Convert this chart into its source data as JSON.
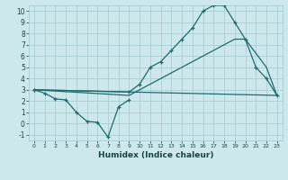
{
  "xlabel": "Humidex (Indice chaleur)",
  "bg_color": "#cce8ec",
  "grid_color": "#aacdd4",
  "line_color": "#1e6b6b",
  "xlim": [
    -0.5,
    23.5
  ],
  "ylim": [
    -1.5,
    10.5
  ],
  "xtick_labels": [
    "0",
    "1",
    "2",
    "3",
    "4",
    "5",
    "6",
    "7",
    "8",
    "9",
    "10",
    "11",
    "12",
    "13",
    "14",
    "15",
    "16",
    "17",
    "18",
    "19",
    "20",
    "21",
    "22",
    "23"
  ],
  "ytick_labels": [
    "-1",
    "0",
    "1",
    "2",
    "3",
    "4",
    "5",
    "6",
    "7",
    "8",
    "9",
    "10"
  ],
  "ytick_vals": [
    -1,
    0,
    1,
    2,
    3,
    4,
    5,
    6,
    7,
    8,
    9,
    10
  ],
  "xtick_vals": [
    0,
    1,
    2,
    3,
    4,
    5,
    6,
    7,
    8,
    9,
    10,
    11,
    12,
    13,
    14,
    15,
    16,
    17,
    18,
    19,
    20,
    21,
    22,
    23
  ],
  "series1_x": [
    0,
    1,
    2,
    3,
    4,
    5,
    6,
    7,
    8,
    9
  ],
  "series1_y": [
    3.0,
    2.7,
    2.2,
    2.1,
    1.0,
    0.2,
    0.1,
    -1.2,
    1.5,
    2.1
  ],
  "series2_x": [
    0,
    9,
    10,
    11,
    12,
    13,
    14,
    15,
    16,
    17,
    18,
    19,
    20,
    21,
    22,
    23
  ],
  "series2_y": [
    3.0,
    2.8,
    3.5,
    5.0,
    5.5,
    6.5,
    7.5,
    8.5,
    10.0,
    10.5,
    10.5,
    9.0,
    7.5,
    5.0,
    4.0,
    2.5
  ],
  "series3_x": [
    0,
    9,
    10,
    19,
    20,
    22,
    23
  ],
  "series3_y": [
    3.0,
    2.5,
    3.0,
    7.5,
    7.5,
    5.0,
    2.5
  ],
  "series4_x": [
    0,
    23
  ],
  "series4_y": [
    3.0,
    2.5
  ]
}
